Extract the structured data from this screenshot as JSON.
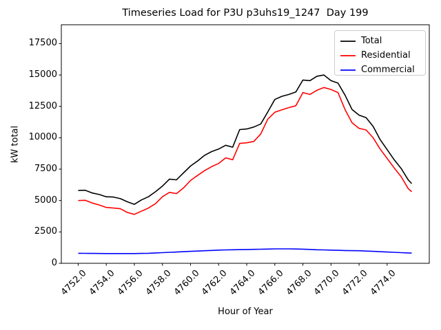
{
  "chart_data": {
    "type": "line",
    "title": "Timeseries Load for P3U p3uhs19_1247  Day 199",
    "xlabel": "Hour of Year",
    "ylabel": "kW total",
    "xlim": [
      4750.8,
      4777.0
    ],
    "ylim": [
      0,
      19000
    ],
    "grid": false,
    "legend_position": "upper right",
    "xticks": [
      4752,
      4754,
      4756,
      4758,
      4760,
      4762,
      4764,
      4766,
      4768,
      4770,
      4772,
      4774
    ],
    "xtick_labels": [
      "4752.0",
      "4754.0",
      "4756.0",
      "4758.0",
      "4760.0",
      "4762.0",
      "4764.0",
      "4766.0",
      "4768.0",
      "4770.0",
      "4772.0",
      "4774.0"
    ],
    "yticks": [
      0,
      2500,
      5000,
      7500,
      10000,
      12500,
      15000,
      17500
    ],
    "ytick_labels": [
      "0",
      "2500",
      "5000",
      "7500",
      "10000",
      "12500",
      "15000",
      "17500"
    ],
    "x": [
      4752.0,
      4752.5,
      4753.0,
      4753.5,
      4754.0,
      4754.5,
      4755.0,
      4755.5,
      4756.0,
      4756.5,
      4757.0,
      4757.5,
      4758.0,
      4758.5,
      4759.0,
      4759.5,
      4760.0,
      4760.5,
      4761.0,
      4761.5,
      4762.0,
      4762.5,
      4763.0,
      4763.5,
      4764.0,
      4764.5,
      4765.0,
      4765.5,
      4766.0,
      4766.5,
      4767.0,
      4767.5,
      4768.0,
      4768.5,
      4769.0,
      4769.5,
      4770.0,
      4770.5,
      4771.0,
      4771.5,
      4772.0,
      4772.5,
      4773.0,
      4773.5,
      4774.0,
      4774.5,
      4775.0,
      4775.5,
      4775.75
    ],
    "series": [
      {
        "name": "Total",
        "color": "#000000",
        "values": [
          5800,
          5820,
          5600,
          5480,
          5300,
          5280,
          5150,
          4900,
          4700,
          5050,
          5300,
          5700,
          6150,
          6700,
          6650,
          7200,
          7750,
          8150,
          8600,
          8900,
          9100,
          9400,
          9250,
          10650,
          10700,
          10850,
          11100,
          12050,
          13050,
          13300,
          13450,
          13650,
          14600,
          14550,
          14900,
          15000,
          14550,
          14350,
          13400,
          12250,
          11800,
          11600,
          10900,
          9850,
          9050,
          8250,
          7550,
          6650,
          6350
        ]
      },
      {
        "name": "Residential",
        "color": "#ff0000",
        "values": [
          5000,
          5020,
          4800,
          4650,
          4450,
          4400,
          4350,
          4050,
          3900,
          4150,
          4400,
          4750,
          5300,
          5650,
          5550,
          6000,
          6600,
          7000,
          7380,
          7700,
          7950,
          8400,
          8250,
          9550,
          9600,
          9700,
          10300,
          11480,
          12030,
          12220,
          12400,
          12550,
          13600,
          13450,
          13780,
          14000,
          13850,
          13600,
          12250,
          11200,
          10750,
          10620,
          10000,
          9100,
          8350,
          7600,
          6900,
          5950,
          5700
        ]
      },
      {
        "name": "Commercial",
        "color": "#0000ff",
        "values": [
          800,
          795,
          790,
          785,
          780,
          778,
          775,
          778,
          780,
          790,
          800,
          825,
          850,
          875,
          900,
          925,
          950,
          975,
          1000,
          1025,
          1050,
          1065,
          1080,
          1090,
          1100,
          1110,
          1120,
          1135,
          1150,
          1150,
          1150,
          1140,
          1130,
          1105,
          1080,
          1065,
          1050,
          1035,
          1020,
          1010,
          1000,
          975,
          950,
          925,
          900,
          875,
          850,
          825,
          815
        ]
      }
    ]
  }
}
